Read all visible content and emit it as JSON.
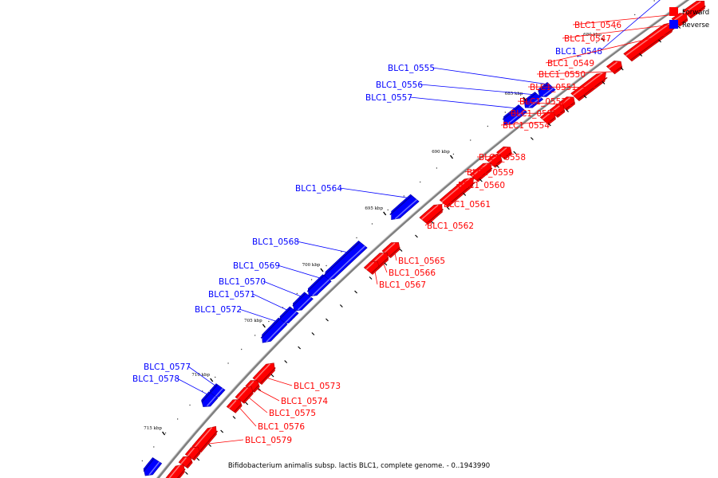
{
  "caption": "Bifidobacterium animalis subsp. lactis BLC1, complete genome. - 0..1943990",
  "legend": [
    {
      "label": "Forward",
      "color": "#ff0000"
    },
    {
      "label": "Reverse",
      "color": "#0000ff"
    }
  ],
  "colors": {
    "forward": "#ff0000",
    "forward_dark": "#b00000",
    "forward_light": "#ff7070",
    "reverse": "#0000ff",
    "reverse_dark": "#0000a8",
    "reverse_light": "#6d6dff",
    "backbone": "#808080"
  },
  "scale": {
    "ticks": [
      "680 kbp",
      "685 kbp",
      "690 kbp",
      "695 kbp",
      "700 kbp",
      "705 kbp",
      "710 kbp",
      "715 kbp"
    ]
  },
  "genes": [
    {
      "name": "BLC1_0546",
      "strand": "forward"
    },
    {
      "name": "BLC1_0547",
      "strand": "forward"
    },
    {
      "name": "BLC1_0548",
      "strand": "reverse"
    },
    {
      "name": "BLC1_0549",
      "strand": "forward"
    },
    {
      "name": "BLC1_0550",
      "strand": "forward"
    },
    {
      "name": "BLC1_0551",
      "strand": "forward"
    },
    {
      "name": "BLC1_0552",
      "strand": "forward"
    },
    {
      "name": "BLC1_0553",
      "strand": "forward"
    },
    {
      "name": "BLC1_0554",
      "strand": "forward"
    },
    {
      "name": "BLC1_0555",
      "strand": "reverse"
    },
    {
      "name": "BLC1_0556",
      "strand": "reverse"
    },
    {
      "name": "BLC1_0557",
      "strand": "reverse"
    },
    {
      "name": "BLC1_0558",
      "strand": "forward"
    },
    {
      "name": "BLC1_0559",
      "strand": "forward"
    },
    {
      "name": "BLC1_0560",
      "strand": "forward"
    },
    {
      "name": "BLC1_0561",
      "strand": "forward"
    },
    {
      "name": "BLC1_0562",
      "strand": "forward"
    },
    {
      "name": "BLC1_0564",
      "strand": "reverse"
    },
    {
      "name": "BLC1_0565",
      "strand": "forward"
    },
    {
      "name": "BLC1_0566",
      "strand": "forward"
    },
    {
      "name": "BLC1_0567",
      "strand": "forward"
    },
    {
      "name": "BLC1_0568",
      "strand": "reverse"
    },
    {
      "name": "BLC1_0569",
      "strand": "reverse"
    },
    {
      "name": "BLC1_0570",
      "strand": "reverse"
    },
    {
      "name": "BLC1_0571",
      "strand": "reverse"
    },
    {
      "name": "BLC1_0572",
      "strand": "reverse"
    },
    {
      "name": "BLC1_0573",
      "strand": "forward"
    },
    {
      "name": "BLC1_0574",
      "strand": "forward"
    },
    {
      "name": "BLC1_0575",
      "strand": "forward"
    },
    {
      "name": "BLC1_0576",
      "strand": "forward"
    },
    {
      "name": "BLC1_0577",
      "strand": "reverse"
    },
    {
      "name": "BLC1_0578",
      "strand": "reverse"
    },
    {
      "name": "BLC1_0579",
      "strand": "forward"
    }
  ]
}
